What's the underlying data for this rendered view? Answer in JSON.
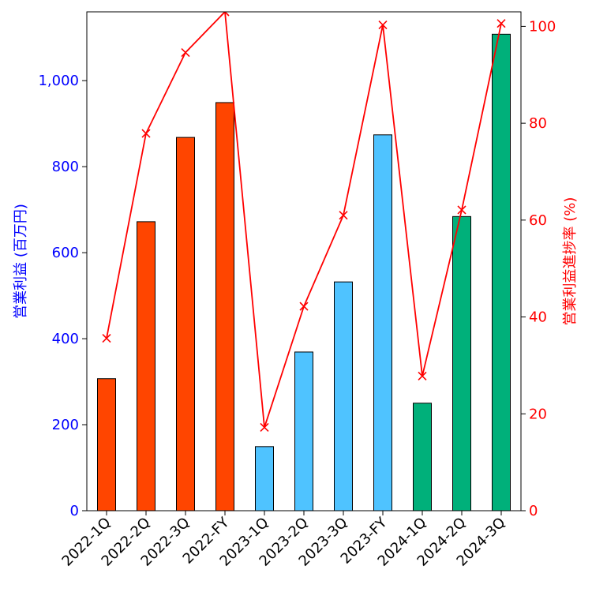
{
  "chart_data": {
    "type": "bar",
    "categories": [
      "2022-1Q",
      "2022-2Q",
      "2022-3Q",
      "2022-FY",
      "2023-1Q",
      "2023-2Q",
      "2023-3Q",
      "2023-FY",
      "2024-1Q",
      "2024-2Q",
      "2024-3Q"
    ],
    "series": [
      {
        "name": "",
        "kind": "bar",
        "axis": "left",
        "values": [
          307,
          672,
          868,
          949,
          149,
          369,
          532,
          874,
          250,
          684,
          1108
        ],
        "colors": [
          "#ff4500",
          "#ff4500",
          "#ff4500",
          "#ff4500",
          "#4fc3ff",
          "#4fc3ff",
          "#4fc3ff",
          "#4fc3ff",
          "#00b07a",
          "#00b07a",
          "#00b07a"
        ]
      },
      {
        "name": "",
        "kind": "line",
        "axis": "right",
        "marker": "x",
        "color": "#ff0000",
        "values": [
          35.6,
          77.9,
          94.6,
          103.0,
          17.2,
          42.2,
          61.0,
          100.3,
          27.8,
          62.1,
          100.6
        ]
      }
    ],
    "ylabel": "営業利益 (百万円)",
    "y2label": "営業利益進捗率 (%)",
    "ylim": [
      0,
      1160
    ],
    "y2lim": [
      0,
      103
    ],
    "yticks": [
      "0",
      "200",
      "400",
      "600",
      "800",
      "1,000"
    ],
    "ytick_values": [
      0,
      200,
      400,
      600,
      800,
      1000
    ],
    "y2ticks": [
      "0",
      "20",
      "40",
      "60",
      "80",
      "100"
    ],
    "y2tick_values": [
      0,
      20,
      40,
      60,
      80,
      100
    ],
    "grid": false,
    "left_axis_color": "#0000ff",
    "right_axis_color": "#ff0000"
  }
}
